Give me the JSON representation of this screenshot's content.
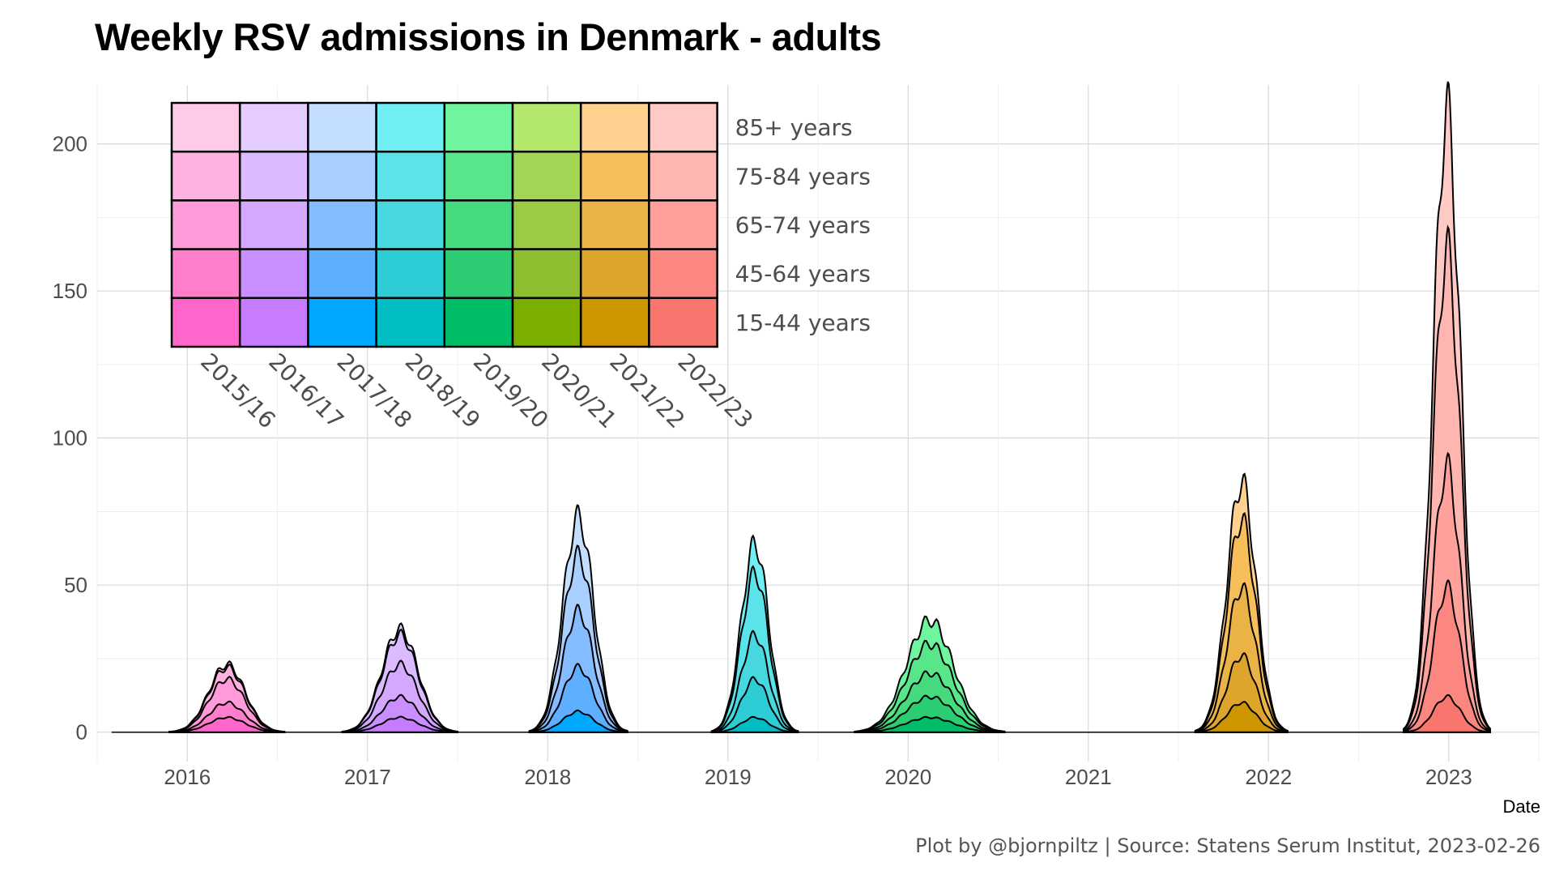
{
  "title": "Weekly RSV admissions in Denmark - adults",
  "caption": "Plot by @bjornpiltz | Source: Statens Serum Institut, 2023-02-26",
  "chart_data": {
    "type": "area",
    "stacked": true,
    "title": "Weekly RSV admissions in Denmark - adults",
    "xlabel": "Date",
    "ylabel": "",
    "ylim": [
      -10,
      220
    ],
    "xlim": [
      2015.5,
      2023.5
    ],
    "yticks": [
      0,
      50,
      100,
      150,
      200
    ],
    "xticks": [
      "2016",
      "2017",
      "2018",
      "2019",
      "2020",
      "2021",
      "2022",
      "2023"
    ],
    "grid": true,
    "legend": {
      "placement": "top-left",
      "columns": [
        "2015/16",
        "2016/17",
        "2017/18",
        "2018/19",
        "2019/20",
        "2020/21",
        "2021/22",
        "2022/23"
      ],
      "rows": [
        "85+ years",
        "75-84 years",
        "65-74 years",
        "45-64 years",
        "15-44 years"
      ],
      "colors": [
        [
          "#FFC9E9",
          "#E4CCFF",
          "#C3DEFF",
          "#71EEF4",
          "#6EF59D",
          "#B4E86D",
          "#FFD08E",
          "#FFC9C6"
        ],
        [
          "#FFB2E1",
          "#DCBAFF",
          "#A8CFFF",
          "#5BE3EA",
          "#59E68B",
          "#A2D553",
          "#F8BE5A",
          "#FFB6B1"
        ],
        [
          "#FF9BD9",
          "#D4A8FF",
          "#84BCFF",
          "#47D7DF",
          "#46DA7F",
          "#9BCB45",
          "#EBB245",
          "#FFA19A"
        ],
        [
          "#FF7ECC",
          "#C98EFF",
          "#5EAFFF",
          "#2ECCD4",
          "#2CCC72",
          "#8DBE30",
          "#DEA52D",
          "#FC8781"
        ],
        [
          "#FF66CC",
          "#C77CFF",
          "#00A9FF",
          "#00BEC4",
          "#00BE67",
          "#7CAE00",
          "#CD9600",
          "#F8766D"
        ]
      ]
    },
    "age_groups": [
      "15-44 years",
      "45-64 years",
      "65-74 years",
      "75-84 years",
      "85+ years"
    ],
    "series": [
      {
        "season": "2015/16",
        "peak_date": 2016.22,
        "totals": [
          5,
          10,
          18,
          22,
          23
        ],
        "width": 0.1
      },
      {
        "season": "2016/17",
        "peak_date": 2017.18,
        "totals": [
          5,
          12,
          23,
          33,
          35
        ],
        "width": 0.1
      },
      {
        "season": "2017/18",
        "peak_date": 2018.17,
        "totals": [
          7,
          22,
          41,
          60,
          73
        ],
        "width": 0.085
      },
      {
        "season": "2018/19",
        "peak_date": 2019.15,
        "totals": [
          5,
          18,
          33,
          54,
          64
        ],
        "width": 0.075
      },
      {
        "season": "2019/20",
        "peak_date": 2020.12,
        "totals": [
          5,
          12,
          20,
          30,
          38
        ],
        "width": 0.13
      },
      {
        "season": "2020/21",
        "peak_date": 2021.3,
        "totals": [
          0,
          0,
          0,
          0,
          0
        ],
        "width": 0.1
      },
      {
        "season": "2021/22",
        "peak_date": 2021.85,
        "totals": [
          10,
          26,
          49,
          72,
          85
        ],
        "width": 0.08
      },
      {
        "season": "2022/23",
        "peak_date": 2022.99,
        "totals": [
          12,
          49,
          90,
          163,
          210
        ],
        "width": 0.075
      }
    ]
  }
}
